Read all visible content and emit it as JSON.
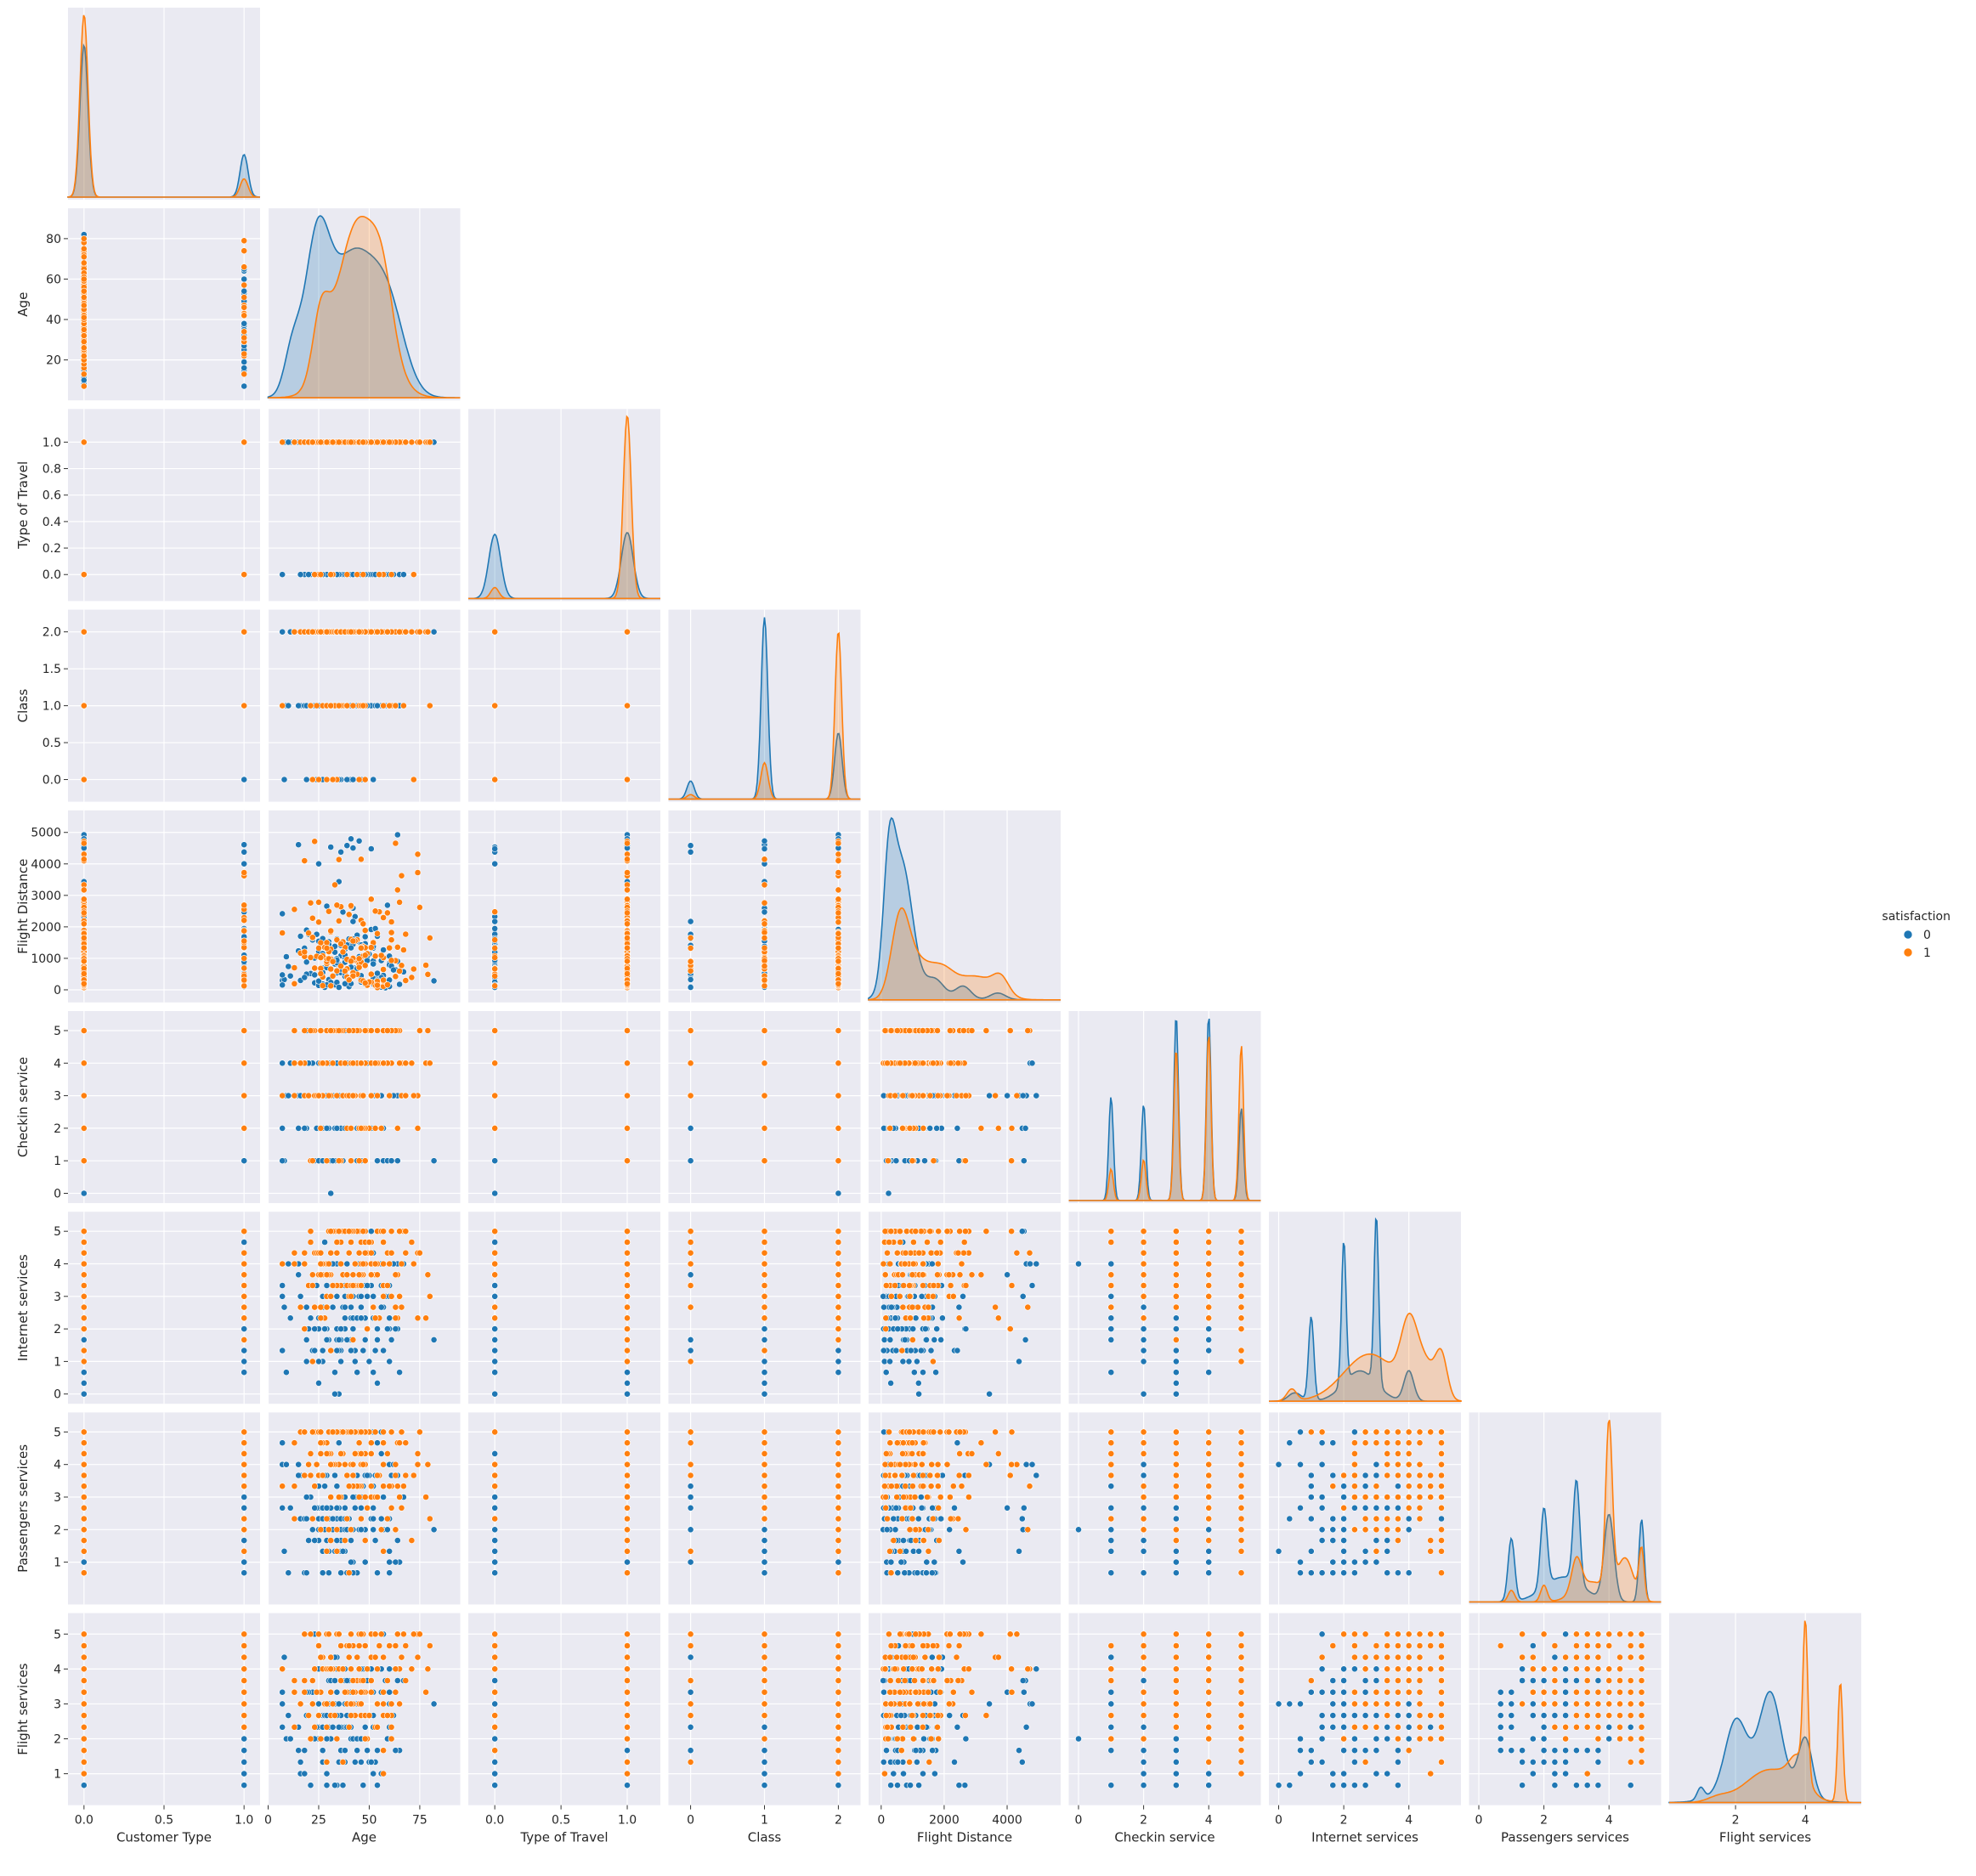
{
  "chart_data": {
    "type": "pairplot",
    "corner": true,
    "style": "seaborn-darkgrid",
    "background_color": "#eaeaf2",
    "grid_color": "#ffffff",
    "variables": [
      {
        "name": "Customer Type",
        "ticks": [
          0.0,
          0.5,
          1.0
        ],
        "tick_labels": [
          "0.0",
          "0.5",
          "1.0"
        ],
        "lim": [
          -0.1,
          1.1
        ]
      },
      {
        "name": "Age",
        "ticks": [
          0,
          25,
          50,
          75
        ],
        "y_ticks": [
          20,
          40,
          60,
          80
        ],
        "tick_labels": [
          "0",
          "25",
          "50",
          "75"
        ],
        "y_tick_labels": [
          "20",
          "40",
          "60",
          "80"
        ],
        "lim": [
          0,
          95
        ]
      },
      {
        "name": "Type of Travel",
        "ticks": [
          0.0,
          0.5,
          1.0
        ],
        "y_ticks": [
          0.0,
          0.2,
          0.4,
          0.6,
          0.8,
          1.0
        ],
        "tick_labels": [
          "0.0",
          "0.5",
          "1.0"
        ],
        "y_tick_labels": [
          "0.0",
          "0.2",
          "0.4",
          "0.6",
          "0.8",
          "1.0"
        ],
        "lim": [
          -0.2,
          1.25
        ]
      },
      {
        "name": "Class",
        "ticks": [
          0,
          1,
          2
        ],
        "y_ticks": [
          0.0,
          0.5,
          1.0,
          1.5,
          2.0
        ],
        "tick_labels": [
          "0",
          "1",
          "2"
        ],
        "y_tick_labels": [
          "0.0",
          "0.5",
          "1.0",
          "1.5",
          "2.0"
        ],
        "lim": [
          -0.3,
          2.3
        ]
      },
      {
        "name": "Flight Distance",
        "ticks": [
          0,
          2000,
          4000
        ],
        "y_ticks": [
          0,
          1000,
          2000,
          3000,
          4000,
          5000
        ],
        "tick_labels": [
          "0",
          "2000",
          "4000"
        ],
        "y_tick_labels": [
          "0",
          "1000",
          "2000",
          "3000",
          "4000",
          "5000"
        ],
        "lim": [
          -400,
          5700
        ]
      },
      {
        "name": "Checkin service",
        "ticks": [
          0,
          2,
          4
        ],
        "y_ticks": [
          0,
          1,
          2,
          3,
          4,
          5
        ],
        "tick_labels": [
          "0",
          "2",
          "4"
        ],
        "y_tick_labels": [
          "0",
          "1",
          "2",
          "3",
          "4",
          "5"
        ],
        "lim": [
          -0.3,
          5.6
        ]
      },
      {
        "name": "Internet services",
        "ticks": [
          0,
          2,
          4
        ],
        "y_ticks": [
          0,
          1,
          2,
          3,
          4,
          5
        ],
        "tick_labels": [
          "0",
          "2",
          "4"
        ],
        "y_tick_labels": [
          "0",
          "1",
          "2",
          "3",
          "4",
          "5"
        ],
        "lim": [
          -0.3,
          5.6
        ]
      },
      {
        "name": "Passengers services",
        "ticks": [
          0,
          2,
          4
        ],
        "y_ticks": [
          1,
          2,
          3,
          4,
          5
        ],
        "tick_labels": [
          "0",
          "2",
          "4"
        ],
        "y_tick_labels": [
          "1",
          "2",
          "3",
          "4",
          "5"
        ],
        "lim": [
          -0.3,
          5.6
        ]
      },
      {
        "name": "Flight services",
        "ticks": [
          2,
          4
        ],
        "y_ticks": [
          1,
          2,
          3,
          4,
          5
        ],
        "tick_labels": [
          "2",
          "4"
        ],
        "y_tick_labels": [
          "1",
          "2",
          "3",
          "4",
          "5"
        ],
        "lim": [
          0.1,
          5.6
        ]
      }
    ],
    "legend": {
      "title": "satisfaction",
      "placement": "right",
      "entries": [
        {
          "label": "0",
          "color": "#1f77b4"
        },
        {
          "label": "1",
          "color": "#ff7f0e"
        }
      ]
    },
    "kde_diagonal": {
      "Customer Type": {
        "0": [
          [
            0,
            1.0,
            0.025
          ],
          [
            1,
            0.28,
            0.025
          ]
        ],
        "1": [
          [
            0,
            1.2,
            0.025
          ],
          [
            1,
            0.12,
            0.025
          ]
        ]
      },
      "Age": {
        "0": [
          [
            24,
            0.55,
            6
          ],
          [
            42,
            0.6,
            12
          ],
          [
            60,
            0.28,
            8
          ],
          [
            12,
            0.18,
            4
          ]
        ],
        "1": [
          [
            26,
            0.25,
            4
          ],
          [
            45,
            0.75,
            11
          ],
          [
            57,
            0.2,
            5
          ]
        ]
      },
      "Type of Travel": {
        "0": [
          [
            0,
            0.35,
            0.045
          ],
          [
            1,
            0.36,
            0.045
          ]
        ],
        "1": [
          [
            0,
            0.06,
            0.03
          ],
          [
            1,
            1.0,
            0.03
          ]
        ]
      },
      "Class": {
        "0": [
          [
            0,
            0.2,
            0.05
          ],
          [
            1,
            2.0,
            0.045
          ],
          [
            2,
            0.73,
            0.05
          ]
        ],
        "1": [
          [
            0,
            0.05,
            0.05
          ],
          [
            1,
            0.4,
            0.05
          ],
          [
            2,
            1.85,
            0.045
          ]
        ]
      },
      "Flight Distance": {
        "0": [
          [
            250,
            0.75,
            180
          ],
          [
            650,
            1.0,
            350
          ],
          [
            1700,
            0.15,
            300
          ],
          [
            2600,
            0.1,
            250
          ],
          [
            3700,
            0.05,
            250
          ]
        ],
        "1": [
          [
            600,
            0.55,
            280
          ],
          [
            1100,
            0.25,
            400
          ],
          [
            1900,
            0.2,
            400
          ],
          [
            3000,
            0.17,
            600
          ],
          [
            3800,
            0.12,
            250
          ]
        ]
      },
      "Checkin service": {
        "0": [
          [
            1,
            0.56,
            0.07
          ],
          [
            2,
            0.52,
            0.07
          ],
          [
            3,
            1.0,
            0.07
          ],
          [
            4,
            1.0,
            0.07
          ],
          [
            5,
            0.5,
            0.07
          ]
        ],
        "1": [
          [
            1,
            0.17,
            0.07
          ],
          [
            2,
            0.22,
            0.07
          ],
          [
            3,
            0.82,
            0.07
          ],
          [
            4,
            0.9,
            0.07
          ],
          [
            5,
            0.84,
            0.07
          ]
        ]
      },
      "Internet services": {
        "0": [
          [
            1.0,
            0.5,
            0.08
          ],
          [
            2.0,
            0.85,
            0.07
          ],
          [
            3.0,
            1.0,
            0.07
          ],
          [
            2.5,
            0.18,
            0.5
          ],
          [
            4.0,
            0.18,
            0.15
          ],
          [
            0.5,
            0.05,
            0.2
          ]
        ],
        "1": [
          [
            0.4,
            0.07,
            0.15
          ],
          [
            2.8,
            0.28,
            0.8
          ],
          [
            4.0,
            0.38,
            0.25
          ],
          [
            5.0,
            0.25,
            0.18
          ],
          [
            4.5,
            0.2,
            0.3
          ]
        ]
      },
      "Passengers services": {
        "0": [
          [
            1,
            0.38,
            0.1
          ],
          [
            2,
            0.48,
            0.1
          ],
          [
            3,
            0.62,
            0.1
          ],
          [
            4,
            0.52,
            0.15
          ],
          [
            5,
            0.5,
            0.08
          ],
          [
            2.6,
            0.15,
            0.6
          ]
        ],
        "1": [
          [
            1,
            0.07,
            0.1
          ],
          [
            2,
            0.1,
            0.1
          ],
          [
            3,
            0.2,
            0.15
          ],
          [
            4,
            1.0,
            0.1
          ],
          [
            4.5,
            0.25,
            0.25
          ],
          [
            5,
            0.3,
            0.08
          ],
          [
            3.5,
            0.12,
            0.5
          ]
        ]
      },
      "Flight services": {
        "0": [
          [
            1,
            0.08,
            0.1
          ],
          [
            2,
            0.42,
            0.3
          ],
          [
            3,
            0.55,
            0.3
          ],
          [
            4,
            0.38,
            0.2
          ],
          [
            2.7,
            0.2,
            0.8
          ]
        ],
        "1": [
          [
            1.5,
            0.03,
            0.3
          ],
          [
            3.0,
            0.22,
            0.7
          ],
          [
            4.0,
            1.0,
            0.07
          ],
          [
            5.0,
            0.8,
            0.07
          ],
          [
            3.8,
            0.2,
            0.25
          ]
        ]
      }
    }
  }
}
